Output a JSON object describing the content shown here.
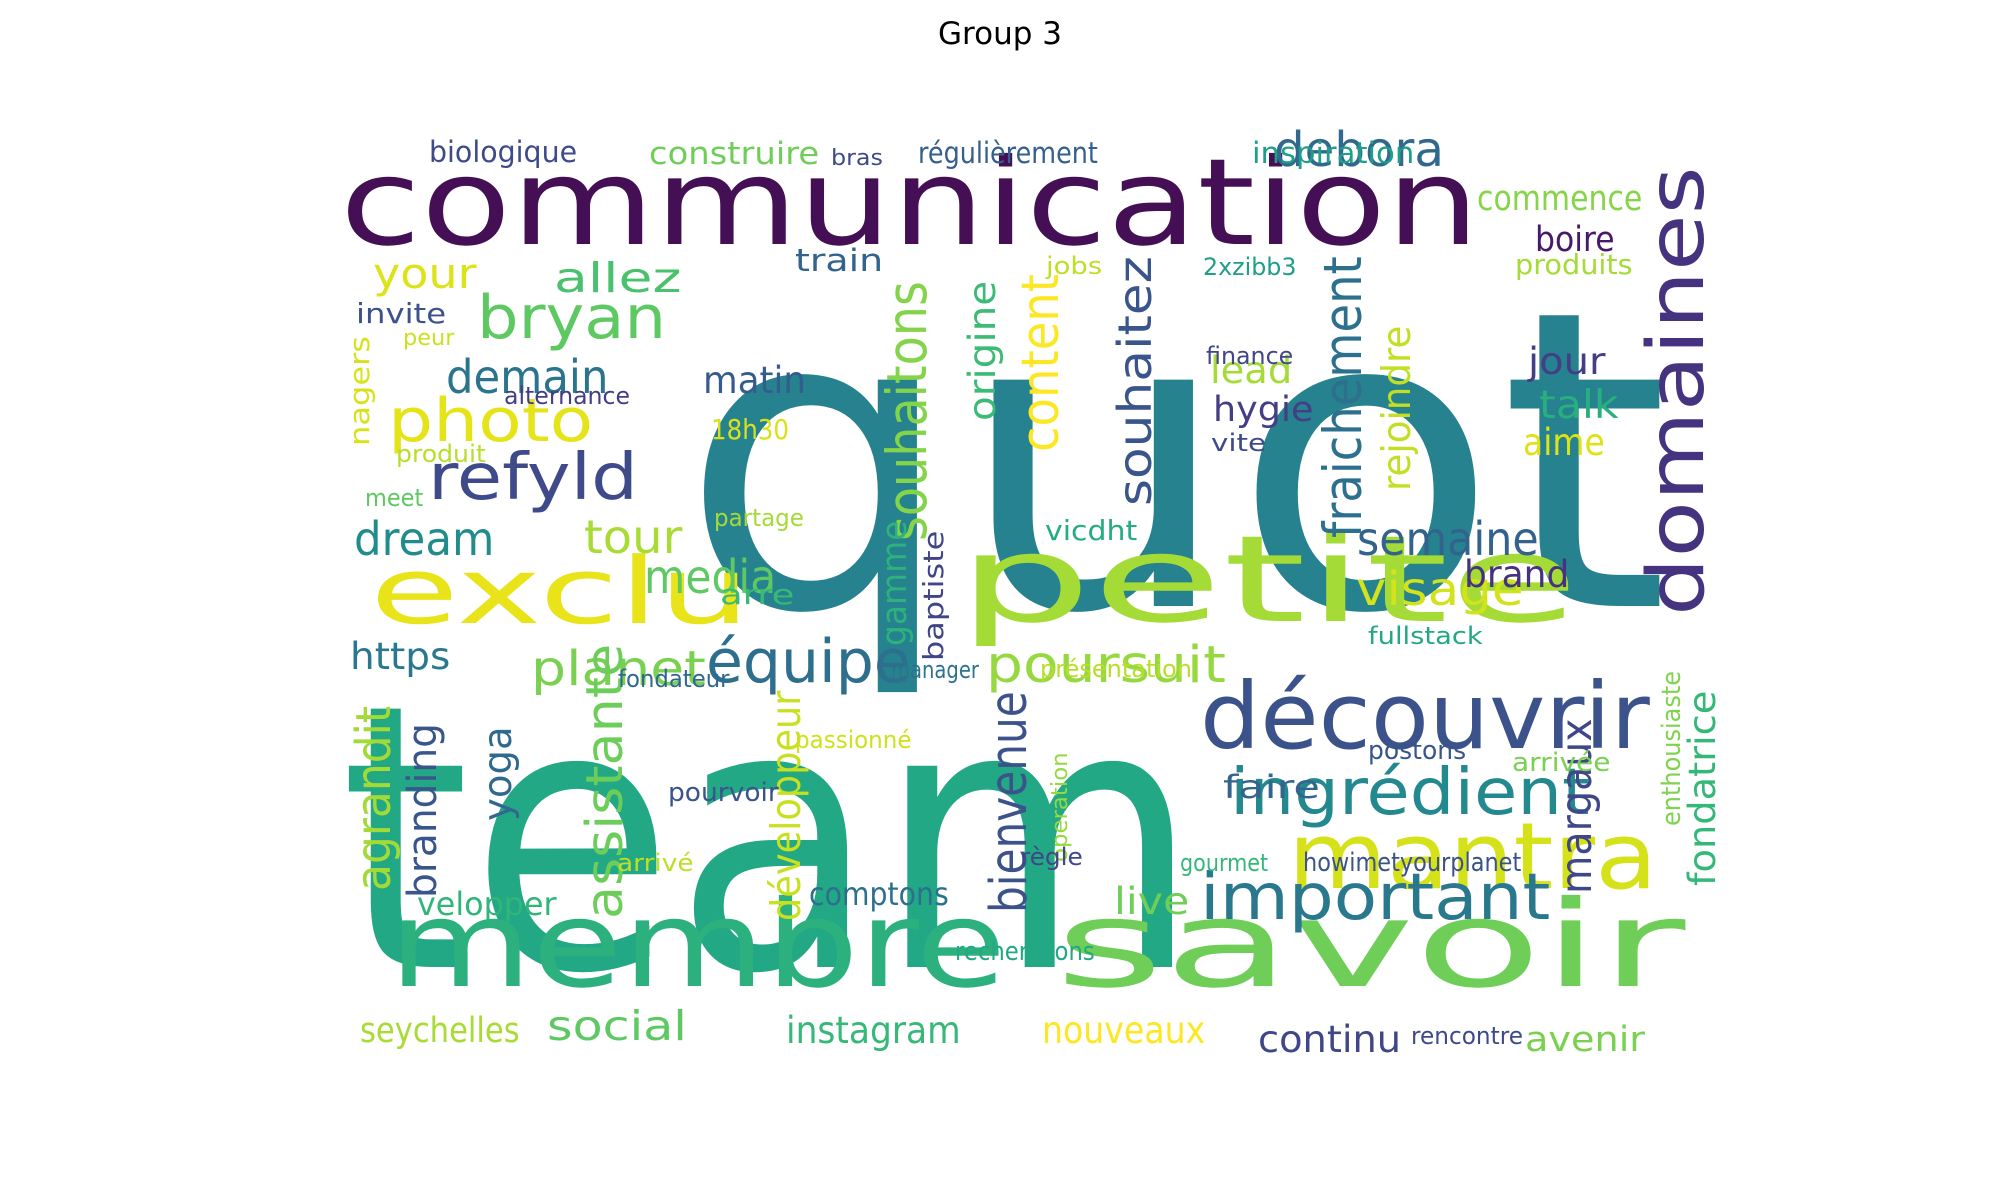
{
  "title": "Group 3",
  "palette": "viridis",
  "words": [
    {
      "text": "quot",
      "color": "#26828e"
    },
    {
      "text": "team",
      "color": "#22a884"
    },
    {
      "text": "communication",
      "color": "#440f54"
    },
    {
      "text": "membre",
      "color": "#2cb17e"
    },
    {
      "text": "savoir",
      "color": "#6ece58"
    },
    {
      "text": "petite",
      "color": "#a5db36"
    },
    {
      "text": "découvrir",
      "color": "#3b528b"
    },
    {
      "text": "domaines",
      "color": "#46337f"
    },
    {
      "text": "exclu",
      "color": "#e8e419"
    },
    {
      "text": "mantra",
      "color": "#d5e21a"
    },
    {
      "text": "important",
      "color": "#2a788e"
    },
    {
      "text": "ingrédient",
      "color": "#23898e"
    },
    {
      "text": "refyld",
      "color": "#3e4a89"
    },
    {
      "text": "photo",
      "color": "#e5e419"
    },
    {
      "text": "bryan",
      "color": "#5ec962"
    },
    {
      "text": "équipe",
      "color": "#2e6f8e"
    },
    {
      "text": "planet",
      "color": "#7ad151"
    },
    {
      "text": "poursuit",
      "color": "#95d840"
    },
    {
      "text": "debora",
      "color": "#31688e"
    },
    {
      "text": "visage",
      "color": "#d2e21b"
    },
    {
      "text": "semaine",
      "color": "#33638d"
    },
    {
      "text": "dream",
      "color": "#228c8d"
    },
    {
      "text": "tour",
      "color": "#a8db34"
    },
    {
      "text": "media",
      "color": "#5ec962"
    },
    {
      "text": "allez",
      "color": "#4ac16d"
    },
    {
      "text": "demain",
      "color": "#2b748e"
    },
    {
      "text": "your",
      "color": "#dde318"
    },
    {
      "text": "matin",
      "color": "#365c8d"
    },
    {
      "text": "souhaitons",
      "color": "#84d44b"
    },
    {
      "text": "souhaitez",
      "color": "#3a548c"
    },
    {
      "text": "content",
      "color": "#fde725"
    },
    {
      "text": "fraichement",
      "color": "#2d708e"
    },
    {
      "text": "rejoindre",
      "color": "#c2df23"
    },
    {
      "text": "assistante",
      "color": "#6ccd5a"
    },
    {
      "text": "agrandit",
      "color": "#a2da37"
    },
    {
      "text": "bienvenue",
      "color": "#3b528b"
    },
    {
      "text": "margaux",
      "color": "#3f4788"
    },
    {
      "text": "fondatrice",
      "color": "#35b779"
    },
    {
      "text": "yoga",
      "color": "#31688e"
    },
    {
      "text": "branding",
      "color": "#39568c"
    },
    {
      "text": "développeur",
      "color": "#c8e020"
    },
    {
      "text": "gamme",
      "color": "#2db27d"
    },
    {
      "text": "baptiste",
      "color": "#404588"
    },
    {
      "text": "origine",
      "color": "#3bbb75"
    },
    {
      "text": "nagers",
      "color": "#d8e219"
    },
    {
      "text": "enthousiaste",
      "color": "#7fd34e"
    },
    {
      "text": "operation",
      "color": "#95d840"
    },
    {
      "text": "social",
      "color": "#5ec962"
    },
    {
      "text": "instagram",
      "color": "#37b878"
    },
    {
      "text": "nouveaux",
      "color": "#fde725"
    },
    {
      "text": "continu",
      "color": "#404688"
    },
    {
      "text": "avenir",
      "color": "#7ad151"
    },
    {
      "text": "seychelles",
      "color": "#a8db34"
    },
    {
      "text": "velopper",
      "color": "#31b57b"
    },
    {
      "text": "comptons",
      "color": "#2d708e"
    },
    {
      "text": "live",
      "color": "#6ece58"
    },
    {
      "text": "https",
      "color": "#2a788e"
    },
    {
      "text": "faire",
      "color": "#32648e"
    },
    {
      "text": "boire",
      "color": "#48186a"
    },
    {
      "text": "jour",
      "color": "#433e85"
    },
    {
      "text": "talk",
      "color": "#29af7f"
    },
    {
      "text": "aime",
      "color": "#dde318"
    },
    {
      "text": "hygie",
      "color": "#433e85"
    },
    {
      "text": "lead",
      "color": "#a5db36"
    },
    {
      "text": "brand",
      "color": "#46337f"
    },
    {
      "text": "commence",
      "color": "#86d549"
    },
    {
      "text": "construire",
      "color": "#6ece58"
    },
    {
      "text": "biologique",
      "color": "#3e4a89"
    },
    {
      "text": "bras",
      "color": "#3e4a89"
    },
    {
      "text": "régulièrement",
      "color": "#355f8d"
    },
    {
      "text": "inspiration",
      "color": "#1f9e89"
    },
    {
      "text": "train",
      "color": "#32648e"
    },
    {
      "text": "jobs",
      "color": "#bddf26"
    },
    {
      "text": "2xzibb3",
      "color": "#1f9e89"
    },
    {
      "text": "produits",
      "color": "#a5db36"
    },
    {
      "text": "invite",
      "color": "#3b528b"
    },
    {
      "text": "peur",
      "color": "#cae11f"
    },
    {
      "text": "finance",
      "color": "#404688"
    },
    {
      "text": "vite",
      "color": "#3e4a89"
    },
    {
      "text": "alternance",
      "color": "#433e85"
    },
    {
      "text": "18h30",
      "color": "#d8e219"
    },
    {
      "text": "produit",
      "color": "#b8de29"
    },
    {
      "text": "meet",
      "color": "#5ec962"
    },
    {
      "text": "partage",
      "color": "#a5db36"
    },
    {
      "text": "vicdht",
      "color": "#25ac82"
    },
    {
      "text": "arre",
      "color": "#38b977"
    },
    {
      "text": "fullstack",
      "color": "#22a884"
    },
    {
      "text": "manager",
      "color": "#2c738e"
    },
    {
      "text": "fondateur",
      "color": "#31688e"
    },
    {
      "text": "présentation",
      "color": "#b8de29"
    },
    {
      "text": "passionné",
      "color": "#d0e11c"
    },
    {
      "text": "postons",
      "color": "#39568c"
    },
    {
      "text": "arrivée",
      "color": "#7ad151"
    },
    {
      "text": "pourvoir",
      "color": "#3a548c"
    },
    {
      "text": "arrivé",
      "color": "#bddf26"
    },
    {
      "text": "règle",
      "color": "#404688"
    },
    {
      "text": "gourmet",
      "color": "#35b779"
    },
    {
      "text": "howimetyourplanet",
      "color": "#3b528b"
    },
    {
      "text": "recherchons",
      "color": "#22a884"
    },
    {
      "text": "rencontre",
      "color": "#3e4a89"
    }
  ]
}
